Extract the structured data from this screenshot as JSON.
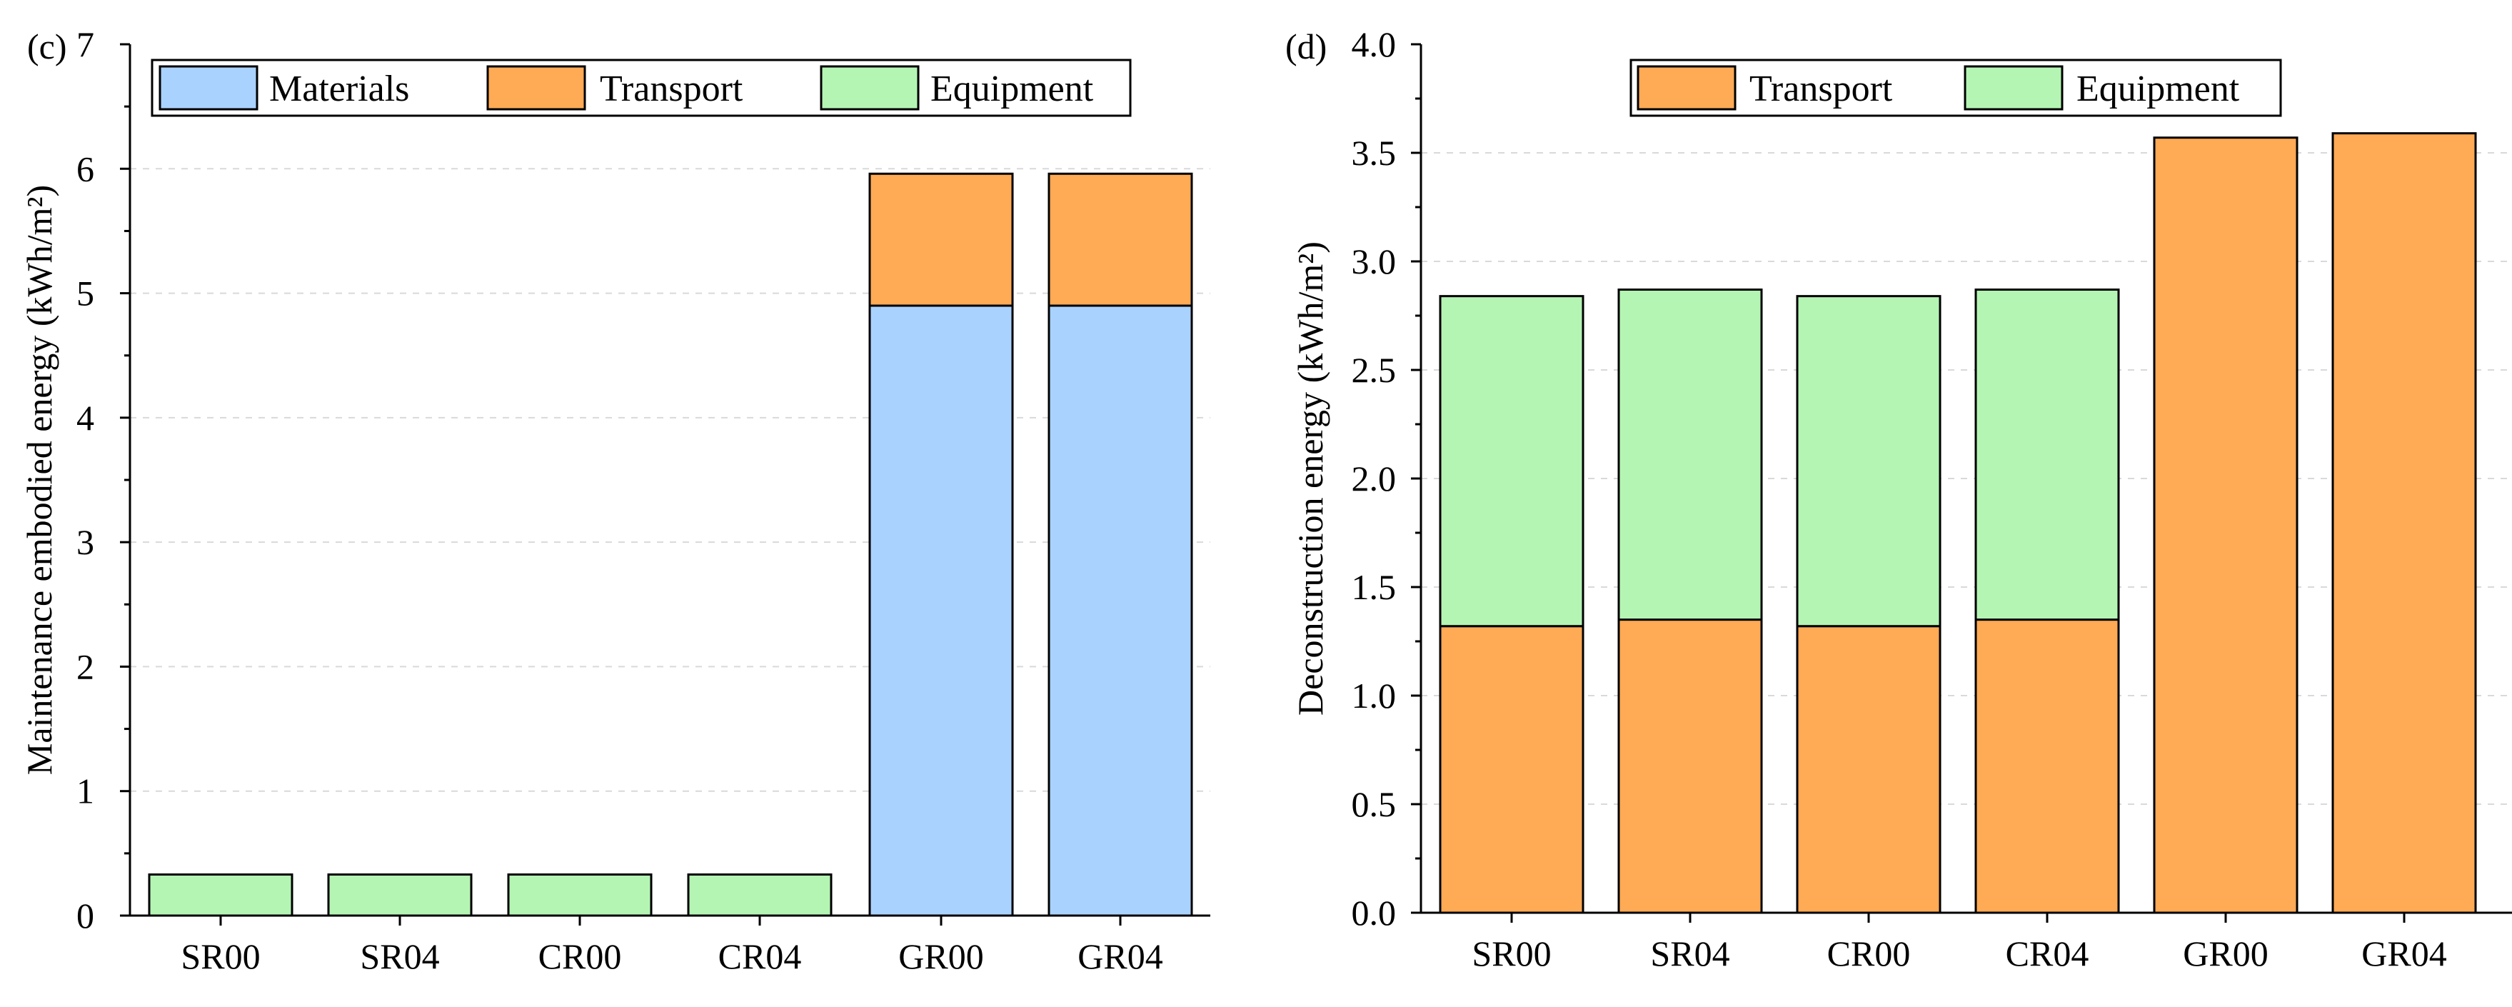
{
  "chart_data": [
    {
      "panel_label": "(c)",
      "type": "bar",
      "stacked": true,
      "categories": [
        "SR00",
        "SR04",
        "CR00",
        "CR04",
        "GR00",
        "GR04"
      ],
      "series": [
        {
          "name": "Materials",
          "color": "#aad2ff",
          "values": [
            0,
            0,
            0,
            0,
            4.9,
            4.9
          ]
        },
        {
          "name": "Transport",
          "color": "#ffaa55",
          "values": [
            0,
            0,
            0,
            0,
            1.06,
            1.06
          ]
        },
        {
          "name": "Equipment",
          "color": "#b4f5b4",
          "values": [
            0.33,
            0.33,
            0.33,
            0.33,
            0,
            0
          ]
        }
      ],
      "ylabel": "Maintenance embodied energy (kWh/m²)",
      "xlabel": "",
      "ylim": [
        0,
        7
      ],
      "yticks": [
        "0",
        "1",
        "2",
        "3",
        "4",
        "5",
        "6",
        "7"
      ],
      "grid": true,
      "legend": "top"
    },
    {
      "panel_label": "(d)",
      "type": "bar",
      "stacked": true,
      "categories": [
        "SR00",
        "SR04",
        "CR00",
        "CR04",
        "GR00",
        "GR04"
      ],
      "series": [
        {
          "name": "Transport",
          "color": "#ffaa55",
          "values": [
            1.32,
            1.35,
            1.32,
            1.35,
            3.57,
            3.59
          ]
        },
        {
          "name": "Equipment",
          "color": "#b4f5b4",
          "values": [
            1.52,
            1.52,
            1.52,
            1.52,
            0,
            0
          ]
        }
      ],
      "ylabel": "Deconstruction energy (kWh/m²)",
      "xlabel": "",
      "ylim": [
        0,
        4
      ],
      "yticks": [
        "0.0",
        "0.5",
        "1.0",
        "1.5",
        "2.0",
        "2.5",
        "3.0",
        "3.5",
        "4.0"
      ],
      "grid": true,
      "legend": "top"
    }
  ]
}
